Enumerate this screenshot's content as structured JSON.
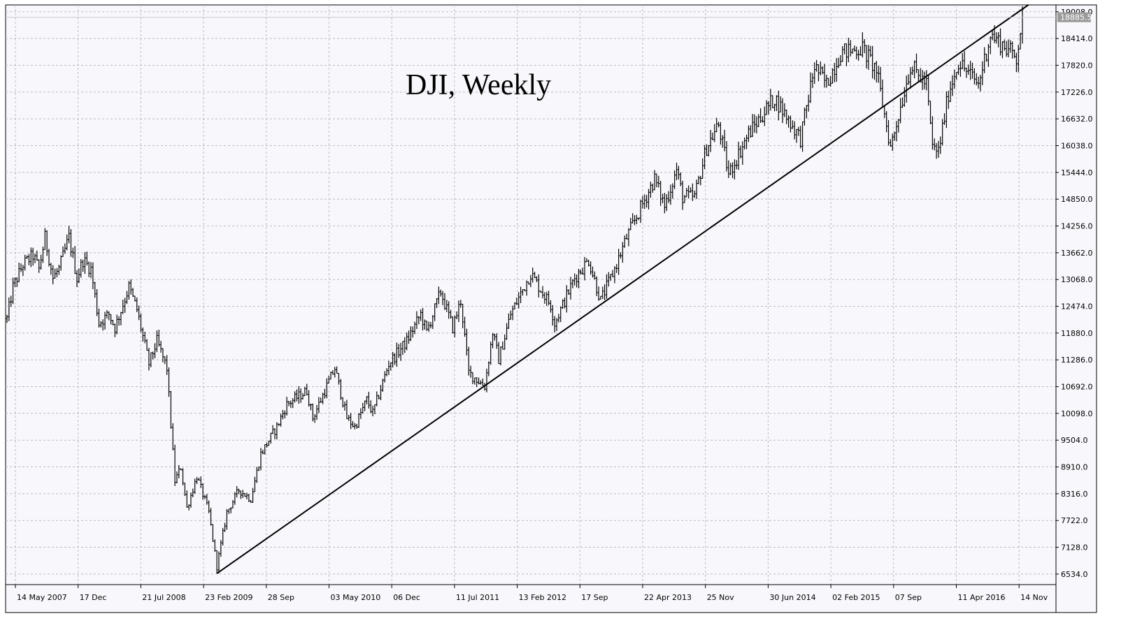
{
  "chart_data": {
    "type": "ohlc",
    "title": "DJI, Weekly",
    "xlabel": "",
    "ylabel": "",
    "ylim": [
      6300,
      19160
    ],
    "y_ticks": [
      6534.0,
      7128.0,
      7722.0,
      8316.0,
      8910.0,
      9504.0,
      10098.0,
      10692.0,
      11286.0,
      11880.0,
      12474.0,
      13068.0,
      13662.0,
      14256.0,
      14850.0,
      15444.0,
      16038.0,
      16632.0,
      17226.0,
      17820.0,
      18414.0,
      19008.0
    ],
    "y_tick_labels": [
      "6534.0",
      "7128.0",
      "7722.0",
      "8316.0",
      "8910.0",
      "9504.0",
      "10098.0",
      "10692.0",
      "11286.0",
      "11880.0",
      "12474.0",
      "13068.0",
      "13662.0",
      "14256.0",
      "14850.0",
      "15444.0",
      "16038.0",
      "16632.0",
      "17226.0",
      "17820.0",
      "18414.0",
      "19008.0"
    ],
    "x_tick_labels": [
      "14 May 2007",
      "17 Dec",
      "21 Jul 2008",
      "23 Feb 2009",
      "28 Sep",
      "03 May 2010",
      "06 Dec",
      "11 Jul 2011",
      "13 Feb 2012",
      "17 Sep",
      "22 Apr 2013",
      "25 Nov",
      "30 Jun 2014",
      "02 Feb 2015",
      "07 Sep",
      "11 Apr 2016",
      "14 Nov"
    ],
    "x_range": [
      "2007-03-05",
      "2016-11-28"
    ],
    "current_price": 18885.5,
    "current_price_label": "18885.5",
    "anchors": [
      {
        "date": "2007-03-05",
        "close": 12200
      },
      {
        "date": "2007-03-26",
        "close": 12900
      },
      {
        "date": "2007-04-30",
        "close": 13400
      },
      {
        "date": "2007-06-04",
        "close": 13600
      },
      {
        "date": "2007-06-25",
        "close": 13300
      },
      {
        "date": "2007-07-16",
        "close": 14000
      },
      {
        "date": "2007-08-13",
        "close": 13100
      },
      {
        "date": "2007-09-03",
        "close": 13300
      },
      {
        "date": "2007-10-08",
        "close": 14000
      },
      {
        "date": "2007-11-05",
        "close": 13100
      },
      {
        "date": "2007-11-26",
        "close": 13500
      },
      {
        "date": "2007-12-24",
        "close": 13300
      },
      {
        "date": "2008-01-21",
        "close": 12100
      },
      {
        "date": "2008-02-25",
        "close": 12300
      },
      {
        "date": "2008-03-17",
        "close": 12000
      },
      {
        "date": "2008-05-05",
        "close": 12900
      },
      {
        "date": "2008-06-02",
        "close": 12400
      },
      {
        "date": "2008-07-14",
        "close": 11200
      },
      {
        "date": "2008-08-11",
        "close": 11700
      },
      {
        "date": "2008-09-15",
        "close": 11100
      },
      {
        "date": "2008-10-13",
        "close": 8600
      },
      {
        "date": "2008-11-03",
        "close": 8900
      },
      {
        "date": "2008-11-24",
        "close": 8000
      },
      {
        "date": "2008-12-29",
        "close": 8700
      },
      {
        "date": "2009-02-09",
        "close": 7900
      },
      {
        "date": "2009-03-09",
        "close": 6700
      },
      {
        "date": "2009-04-13",
        "close": 7900
      },
      {
        "date": "2009-05-25",
        "close": 8400
      },
      {
        "date": "2009-07-06",
        "close": 8200
      },
      {
        "date": "2009-08-10",
        "close": 9200
      },
      {
        "date": "2009-10-05",
        "close": 9800
      },
      {
        "date": "2009-11-09",
        "close": 10300
      },
      {
        "date": "2010-01-18",
        "close": 10600
      },
      {
        "date": "2010-02-08",
        "close": 10000
      },
      {
        "date": "2010-04-26",
        "close": 11100
      },
      {
        "date": "2010-06-07",
        "close": 10000
      },
      {
        "date": "2010-07-05",
        "close": 9800
      },
      {
        "date": "2010-08-16",
        "close": 10400
      },
      {
        "date": "2010-09-06",
        "close": 10100
      },
      {
        "date": "2010-11-01",
        "close": 11200
      },
      {
        "date": "2011-01-03",
        "close": 11700
      },
      {
        "date": "2011-02-21",
        "close": 12300
      },
      {
        "date": "2011-03-14",
        "close": 11900
      },
      {
        "date": "2011-05-02",
        "close": 12800
      },
      {
        "date": "2011-06-13",
        "close": 12000
      },
      {
        "date": "2011-07-11",
        "close": 12600
      },
      {
        "date": "2011-08-08",
        "close": 11000
      },
      {
        "date": "2011-10-03",
        "close": 10700
      },
      {
        "date": "2011-10-31",
        "close": 11900
      },
      {
        "date": "2011-11-21",
        "close": 11300
      },
      {
        "date": "2012-01-02",
        "close": 12300
      },
      {
        "date": "2012-03-12",
        "close": 13200
      },
      {
        "date": "2012-05-21",
        "close": 12500
      },
      {
        "date": "2012-06-04",
        "close": 12100
      },
      {
        "date": "2012-08-13",
        "close": 13100
      },
      {
        "date": "2012-10-01",
        "close": 13500
      },
      {
        "date": "2012-11-12",
        "close": 12600
      },
      {
        "date": "2012-12-31",
        "close": 13300
      },
      {
        "date": "2013-02-11",
        "close": 14000
      },
      {
        "date": "2013-05-20",
        "close": 15300
      },
      {
        "date": "2013-06-24",
        "close": 14700
      },
      {
        "date": "2013-08-05",
        "close": 15500
      },
      {
        "date": "2013-08-26",
        "close": 14900
      },
      {
        "date": "2013-10-07",
        "close": 14900
      },
      {
        "date": "2013-11-18",
        "close": 16000
      },
      {
        "date": "2013-12-30",
        "close": 16500
      },
      {
        "date": "2014-02-03",
        "close": 15400
      },
      {
        "date": "2014-04-14",
        "close": 16300
      },
      {
        "date": "2014-07-14",
        "close": 17100
      },
      {
        "date": "2014-10-13",
        "close": 16200
      },
      {
        "date": "2014-12-01",
        "close": 17800
      },
      {
        "date": "2015-01-12",
        "close": 17400
      },
      {
        "date": "2015-03-02",
        "close": 18100
      },
      {
        "date": "2015-05-18",
        "close": 18200
      },
      {
        "date": "2015-07-06",
        "close": 17700
      },
      {
        "date": "2015-08-24",
        "close": 16000
      },
      {
        "date": "2015-11-02",
        "close": 17800
      },
      {
        "date": "2015-12-28",
        "close": 17400
      },
      {
        "date": "2016-01-18",
        "close": 16000
      },
      {
        "date": "2016-02-08",
        "close": 15900
      },
      {
        "date": "2016-03-14",
        "close": 17200
      },
      {
        "date": "2016-04-18",
        "close": 17900
      },
      {
        "date": "2016-06-27",
        "close": 17400
      },
      {
        "date": "2016-08-08",
        "close": 18500
      },
      {
        "date": "2016-10-03",
        "close": 18200
      },
      {
        "date": "2016-11-07",
        "close": 18000
      },
      {
        "date": "2016-11-28",
        "close": 18885.5
      }
    ],
    "trendline": {
      "start": {
        "date": "2009-03-09",
        "value": 6547
      },
      "end": {
        "date": "2016-12-19",
        "value": 19160
      }
    },
    "grid": true,
    "colors": {
      "bars": "#000000",
      "background": "#f8f8fc",
      "grid": "#b9b9c4",
      "frame": "#000000",
      "price_label_bg": "#9a9a9a",
      "price_label_text": "#ffffff"
    }
  }
}
